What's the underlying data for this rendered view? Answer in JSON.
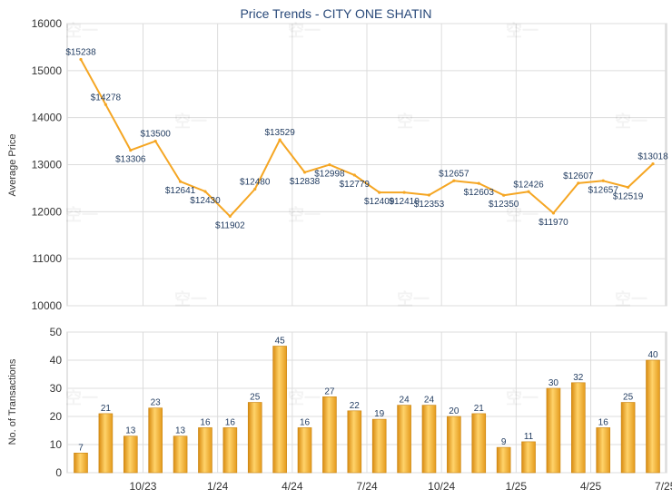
{
  "chart_data": [
    {
      "type": "line",
      "title": "Price Trends - CITY ONE SHATIN",
      "ylabel": "Average Price",
      "ylim": [
        10000,
        16000
      ],
      "yticks": [
        10000,
        11000,
        12000,
        13000,
        14000,
        15000,
        16000
      ],
      "grid": true,
      "color": "#f5a623",
      "series": [
        {
          "values": [
            15238,
            14278,
            13306,
            13500,
            12641,
            12430,
            11902,
            12480,
            13529,
            12838,
            12998,
            12779,
            12409,
            12410,
            12353,
            12657,
            12603,
            12350,
            12426,
            11970,
            12607,
            12657,
            12519,
            13018
          ],
          "labels": [
            "$15238",
            "$14278",
            "$13306",
            "$13500",
            "$12641",
            "$12430",
            "$11902",
            "$12480",
            "$13529",
            "$12838",
            "$12998",
            "$12779",
            "$12409",
            "$12410",
            "$12353",
            "$12657",
            "$12603",
            "$12350",
            "$12426",
            "$11970",
            "$12607",
            "$12657",
            "$12519",
            "$13018"
          ]
        }
      ]
    },
    {
      "type": "bar",
      "ylabel": "No. of Transactions",
      "ylim": [
        0,
        50
      ],
      "yticks": [
        0,
        10,
        20,
        30,
        40,
        50
      ],
      "xtick_labels": [
        "10/23",
        "1/24",
        "4/24",
        "7/24",
        "10/24",
        "1/25",
        "4/25",
        "7/25"
      ],
      "xtick_months": [
        3,
        6,
        9,
        12,
        15,
        18,
        21,
        24
      ],
      "grid": true,
      "color": "#f0a830",
      "values": [
        7,
        21,
        13,
        23,
        13,
        16,
        16,
        25,
        45,
        16,
        27,
        22,
        19,
        24,
        24,
        20,
        21,
        9,
        11,
        30,
        32,
        16,
        25,
        40
      ]
    }
  ]
}
